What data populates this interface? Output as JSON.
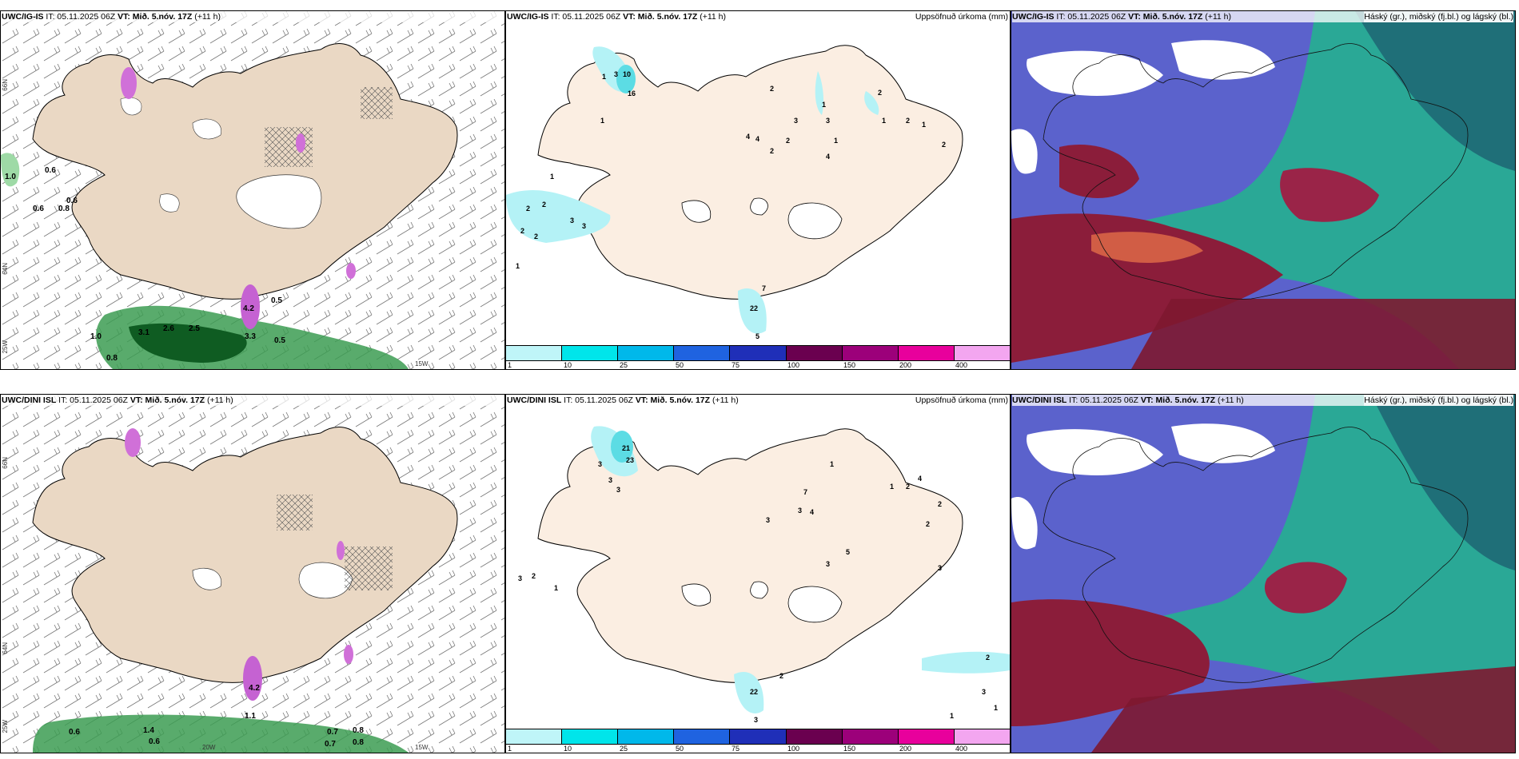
{
  "panels": {
    "p1": {
      "model": "UWC/IG-IS",
      "it": "IT: 05.11.2025 06Z",
      "vt": "VT: Mið. 5.nóv. 17Z",
      "lead": "(+11 h)"
    },
    "p2": {
      "model": "UWC/IG-IS",
      "it": "IT: 05.11.2025 06Z",
      "vt": "VT: Mið. 5.nóv. 17Z",
      "lead": "(+11 h)",
      "right": "Uppsöfnuð úrkoma (mm)"
    },
    "p3": {
      "model": "UWC/IG-IS",
      "it": "IT: 05.11.2025 06Z",
      "vt": "VT: Mið. 5.nóv. 17Z",
      "lead": "(+11 h)",
      "right": "Háský (gr.), miðský (fj.bl.) og lágský (bl.)"
    },
    "p4": {
      "model": "UWC/DINI ISL",
      "it": "IT: 05.11.2025 06Z",
      "vt": "VT: Mið. 5.nóv. 17Z",
      "lead": "(+11 h)"
    },
    "p5": {
      "model": "UWC/DINI ISL",
      "it": "IT: 05.11.2025 06Z",
      "vt": "VT: Mið. 5.nóv. 17Z",
      "lead": "(+11 h)",
      "right": "Uppsöfnuð úrkoma (mm)"
    },
    "p6": {
      "model": "UWC/DINI ISL",
      "it": "IT: 05.11.2025 06Z",
      "vt": "VT: Mið. 5.nóv. 17Z",
      "lead": "(+11 h)",
      "right": "Háský (gr.), miðský (fj.bl.) og lágský (bl.)"
    }
  },
  "axis_labels": {
    "lat66": "66N",
    "lat64": "64N",
    "lon25": "25W",
    "lon15": "15W",
    "lon20": "20W",
    "lat65": "65N"
  },
  "wind_values_top": [
    "1.0",
    "0.6",
    "0.6",
    "0.8",
    "0.6",
    "0.5",
    "3.1",
    "2.6",
    "2.5",
    "3.3",
    "0.5",
    "1.0",
    "0.8",
    "4.2"
  ],
  "wind_values_bottom": [
    "0.6",
    "1.4",
    "0.6",
    "0.7",
    "0.8",
    "0.7",
    "0.8",
    "1.1",
    "4.2"
  ],
  "precip_top": [
    "10",
    "16",
    "3",
    "1",
    "1",
    "1",
    "2",
    "2",
    "3",
    "3",
    "2",
    "1",
    "2",
    "4",
    "4",
    "2",
    "2",
    "2",
    "3",
    "3",
    "1",
    "1",
    "1",
    "2",
    "2",
    "7",
    "22",
    "5",
    "1",
    "2",
    "4"
  ],
  "precip_bottom": [
    "21",
    "23",
    "3",
    "3",
    "3",
    "3",
    "2",
    "1",
    "7",
    "3",
    "4",
    "3",
    "5",
    "3",
    "1",
    "4",
    "2",
    "2",
    "1",
    "2",
    "3",
    "22",
    "3",
    "2",
    "2",
    "1",
    "1",
    "3"
  ],
  "colorbar": {
    "colors": [
      "#bff5f8",
      "#00e5ea",
      "#00b8ea",
      "#1f63e0",
      "#1f2fb8",
      "#6a004f",
      "#9c007a",
      "#e8009c",
      "#f3a6f0"
    ],
    "ticks": [
      "1",
      "10",
      "25",
      "50",
      "75",
      "100",
      "150",
      "200",
      "400"
    ]
  },
  "colors": {
    "land": "#f0e0d0",
    "land2": "#fbeee2",
    "precip": "#b4f2f6",
    "green": "#2e8f43",
    "purple": "#d070d8",
    "cloud_blue": "#5a5fd0",
    "cloud_red": "#8b1d3a",
    "cloud_green": "#22b58c",
    "cloud_teal": "#1f6f78"
  }
}
